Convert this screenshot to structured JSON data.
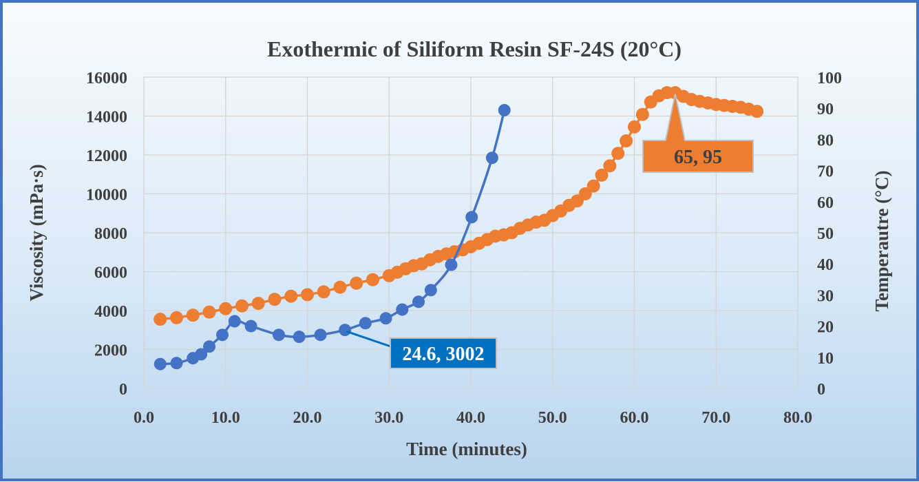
{
  "chart_data": {
    "type": "line",
    "title": "Exothermic of Siliform Resin SF-24S (20°C)",
    "xlabel": "Time (minutes)",
    "ylabel": "Viscosity (mPa·s)",
    "y2label": "Temperautre (°C)",
    "xlim": [
      0,
      80
    ],
    "ylim": [
      0,
      16000
    ],
    "y2lim": [
      0,
      100
    ],
    "x_ticks": [
      "0.0",
      "10.0",
      "20.0",
      "30.0",
      "40.0",
      "50.0",
      "60.0",
      "70.0",
      "80.0"
    ],
    "y_ticks": [
      "0",
      "2000",
      "4000",
      "6000",
      "8000",
      "10000",
      "12000",
      "14000",
      "16000"
    ],
    "y2_ticks": [
      "0",
      "10",
      "20",
      "30",
      "40",
      "50",
      "60",
      "70",
      "80",
      "90",
      "100"
    ],
    "grid": true,
    "series": [
      {
        "axis": "left",
        "color": "#4472c4",
        "x": [
          2.0,
          4.0,
          6.0,
          7.0,
          8.0,
          9.6,
          11.1,
          13.1,
          16.5,
          19.0,
          21.6,
          24.6,
          27.1,
          29.6,
          31.6,
          33.6,
          35.1,
          37.6,
          40.1,
          42.6,
          44.1
        ],
        "y": [
          1250,
          1300,
          1550,
          1750,
          2150,
          2750,
          3450,
          3200,
          2750,
          2650,
          2750,
          3002,
          3350,
          3600,
          4050,
          4450,
          5050,
          6350,
          8800,
          11850,
          14300
        ]
      },
      {
        "axis": "right",
        "color": "#ed7d31",
        "x": [
          2,
          4,
          6,
          8,
          10,
          12,
          14,
          16,
          18,
          20,
          22,
          24,
          26,
          28,
          30,
          31,
          32,
          33,
          34,
          35,
          36,
          37,
          38,
          39,
          40,
          41,
          42,
          43,
          44,
          45,
          46,
          47,
          48,
          49,
          50,
          51,
          52,
          53,
          54,
          55,
          56,
          57,
          58,
          59,
          60,
          61,
          62,
          63,
          64,
          65,
          66,
          67,
          68,
          69,
          70,
          71,
          72,
          73,
          74,
          75
        ],
        "y": [
          22.2,
          22.7,
          23.5,
          24.5,
          25.6,
          26.5,
          27.3,
          28.6,
          29.6,
          30.1,
          31.0,
          32.5,
          33.8,
          34.9,
          36.2,
          37.3,
          38.4,
          39.4,
          40.0,
          41.3,
          42.4,
          43.2,
          43.9,
          44.5,
          45.5,
          46.6,
          47.8,
          48.9,
          49.3,
          50.0,
          51.4,
          52.5,
          53.4,
          54.0,
          55.5,
          57.0,
          58.8,
          60.2,
          62.5,
          65.0,
          68.5,
          71.5,
          75.5,
          79.5,
          84.0,
          88.0,
          92.0,
          94.0,
          95.0,
          95.0,
          93.8,
          92.8,
          92.2,
          91.7,
          91.2,
          90.9,
          90.6,
          90.3,
          89.7,
          89.0
        ]
      }
    ],
    "annotations": [
      {
        "label": "24.6, 3002",
        "x": 24.6,
        "y": 3002,
        "axis": "left",
        "fill": "#0070c0",
        "text_color": "#ffffff"
      },
      {
        "label": "65, 95",
        "x": 65,
        "y": 95,
        "axis": "right",
        "fill": "#ed7d31",
        "text_color": "#3f3f3f"
      }
    ]
  }
}
